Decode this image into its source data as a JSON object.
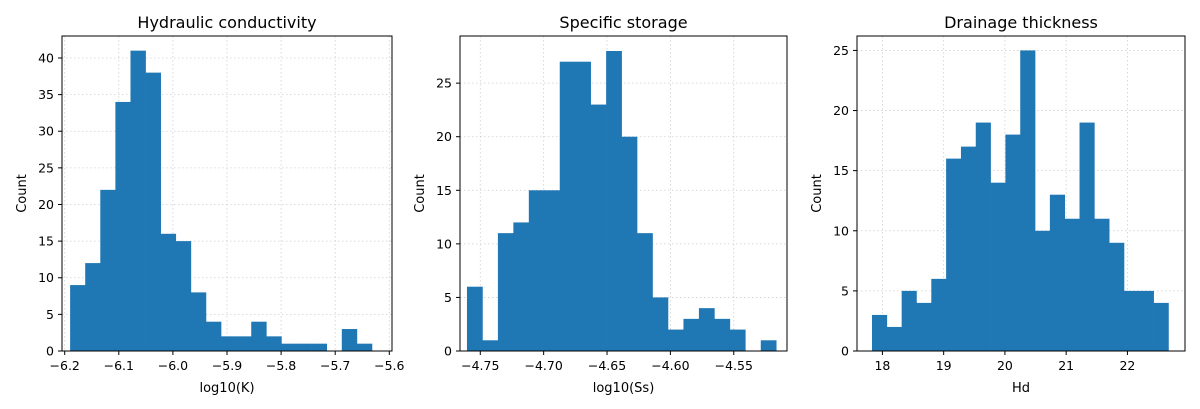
{
  "chart_data": [
    {
      "type": "bar",
      "title": "Hydraulic conductivity",
      "xlabel": "log10(K)",
      "ylabel": "Count",
      "xlim": [
        -6.205,
        -5.595
      ],
      "ylim": [
        0,
        43
      ],
      "grid": true,
      "color": "#1f77b4",
      "xticks": [
        -6.2,
        -6.1,
        -6.0,
        -5.9,
        -5.8,
        -5.7,
        -5.6
      ],
      "xtick_labels": [
        "−6.2",
        "−6.1",
        "−6.0",
        "−5.9",
        "−5.8",
        "−5.7",
        "−5.6"
      ],
      "yticks": [
        0,
        5,
        10,
        15,
        20,
        25,
        30,
        35,
        40
      ],
      "yticks_labels": [
        "0",
        "5",
        "10",
        "15",
        "20",
        "25",
        "30",
        "35",
        "40"
      ],
      "bin_edges": [
        -6.19,
        -6.1621,
        -6.1342,
        -6.1063,
        -6.0784,
        -6.0505,
        -6.0226,
        -5.9947,
        -5.9668,
        -5.9389,
        -5.911,
        -5.8831,
        -5.8552,
        -5.8273,
        -5.7994,
        -5.7715,
        -5.7436,
        -5.7157,
        -5.6878,
        -5.6599,
        -5.632,
        -5.6041
      ],
      "values": [
        9,
        12,
        22,
        34,
        41,
        38,
        16,
        15,
        8,
        4,
        2,
        2,
        4,
        2,
        1,
        1,
        1,
        0,
        3,
        1,
        0
      ]
    },
    {
      "type": "bar",
      "title": "Specific storage",
      "xlabel": "log10(Ss)",
      "ylabel": "Count",
      "xlim": [
        -4.766,
        -4.508
      ],
      "ylim": [
        0,
        29.4
      ],
      "grid": true,
      "color": "#1f77b4",
      "xticks": [
        -4.75,
        -4.7,
        -4.65,
        -4.6,
        -4.55
      ],
      "xtick_labels": [
        "−4.75",
        "−4.70",
        "−4.65",
        "−4.60",
        "−4.55"
      ],
      "yticks": [
        0,
        5,
        10,
        15,
        20,
        25
      ],
      "yticks_labels": [
        "0",
        "5",
        "10",
        "15",
        "20",
        "25"
      ],
      "bin_edges": [
        -4.7605,
        -4.7483,
        -4.7361,
        -4.7239,
        -4.7117,
        -4.6995,
        -4.6873,
        -4.6751,
        -4.6629,
        -4.6507,
        -4.6385,
        -4.6263,
        -4.6141,
        -4.6019,
        -4.5897,
        -4.5775,
        -4.5653,
        -4.5531,
        -4.5409,
        -4.5287,
        -4.5165
      ],
      "values": [
        6,
        1,
        11,
        12,
        15,
        15,
        27,
        27,
        23,
        28,
        20,
        11,
        5,
        2,
        3,
        4,
        3,
        2,
        0,
        1
      ]
    },
    {
      "type": "bar",
      "title": "Drainage thickness",
      "xlabel": "Hd",
      "ylabel": "Count",
      "xlim": [
        17.585,
        22.94
      ],
      "ylim": [
        0,
        26.2
      ],
      "grid": true,
      "color": "#1f77b4",
      "xticks": [
        18,
        19,
        20,
        21,
        22
      ],
      "xtick_labels": [
        "18",
        "19",
        "20",
        "21",
        "22"
      ],
      "yticks": [
        0,
        5,
        10,
        15,
        20,
        25
      ],
      "yticks_labels": [
        "0",
        "5",
        "10",
        "15",
        "20",
        "25"
      ],
      "bin_edges": [
        17.83,
        18.072,
        18.314,
        18.556,
        18.798,
        19.04,
        19.282,
        19.524,
        19.766,
        20.008,
        20.25,
        20.492,
        20.734,
        20.976,
        21.218,
        21.46,
        21.702,
        21.944,
        22.186,
        22.428,
        22.67
      ],
      "values": [
        3,
        2,
        5,
        4,
        6,
        16,
        17,
        19,
        14,
        18,
        25,
        10,
        13,
        11,
        19,
        11,
        9,
        5,
        5,
        4
      ]
    }
  ]
}
